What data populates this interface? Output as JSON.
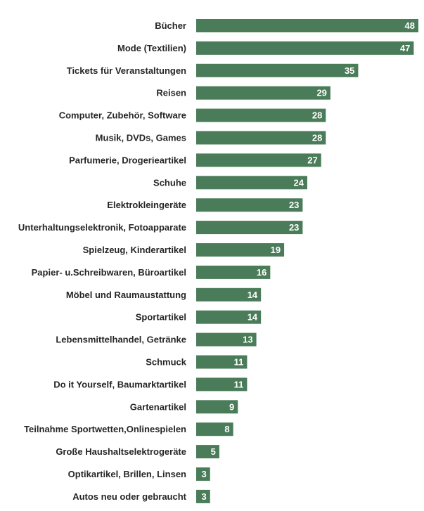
{
  "chart_data": {
    "type": "bar",
    "orientation": "horizontal",
    "title": "",
    "xlabel": "",
    "ylabel": "",
    "grid": false,
    "legend": "none",
    "bar_color": "#4a7c59",
    "value_label_color": "#ffffff",
    "category_label_color": "#262626",
    "xlim": [
      0,
      48
    ],
    "categories": [
      "Bücher",
      "Mode (Textilien)",
      "Tickets für Veranstaltungen",
      "Reisen",
      "Computer, Zubehör, Software",
      "Musik, DVDs, Games",
      "Parfumerie, Drogerieartikel",
      "Schuhe",
      "Elektrokleingeräte",
      "Unterhaltungselektronik, Fotoapparate",
      "Spielzeug, Kinderartikel",
      "Papier- u.Schreibwaren, Büroartikel",
      "Möbel und Raumaustattung",
      "Sportartikel",
      "Lebensmittelhandel, Getränke",
      "Schmuck",
      "Do it Yourself, Baumarktartikel",
      "Gartenartikel",
      "Teilnahme Sportwetten,Onlinespielen",
      "Große Haushaltselektrogeräte",
      "Optikartikel, Brillen, Linsen",
      "Autos neu oder gebraucht"
    ],
    "values": [
      48,
      47,
      35,
      29,
      28,
      28,
      27,
      24,
      23,
      23,
      19,
      16,
      14,
      14,
      13,
      11,
      11,
      9,
      8,
      5,
      3,
      3
    ]
  }
}
